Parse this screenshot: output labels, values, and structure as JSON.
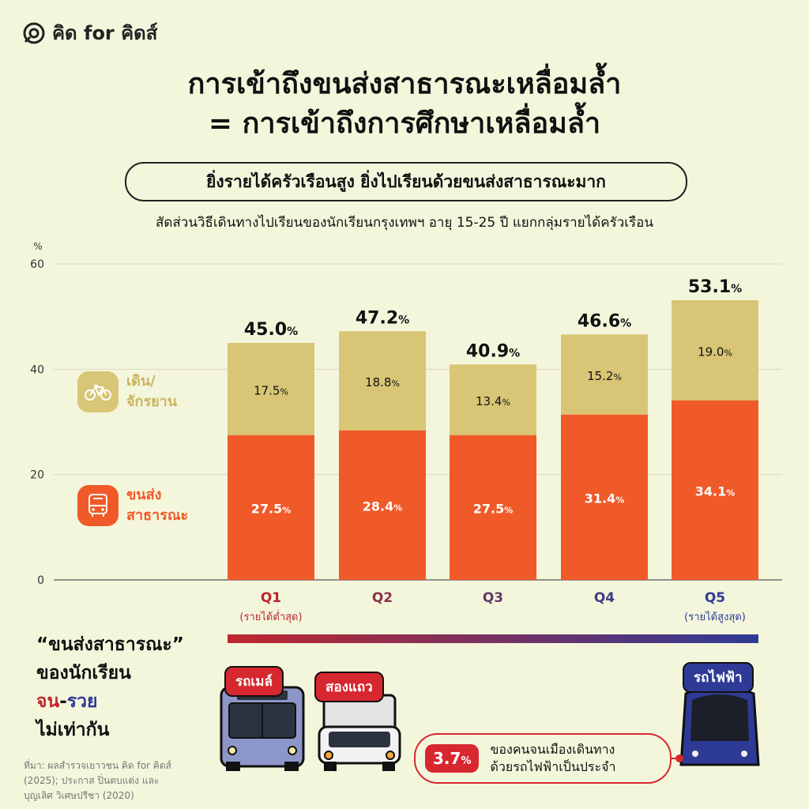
{
  "brand": {
    "logo_text": "คิด for คิดส์"
  },
  "title_lines": [
    "การเข้าถึงขนส่งสาธารณะเหลื่อมล้ำ",
    "= การเข้าถึงการศึกษาเหลื่อมล้ำ"
  ],
  "subtitle": "ยิ่งรายได้ครัวเรือนสูง ยิ่งไปเรียนด้วยขนส่งสาธารณะมาก",
  "caption": "สัดส่วนวิธีเดินทางไปเรียนของนักเรียนกรุงเทพฯ อายุ 15-25 ปี แยกกลุ่มรายได้ครัวเรือน",
  "colors": {
    "walk_bike": "#d8c575",
    "public_transport": "#f05a28",
    "q1": "#c0272d",
    "q5": "#2e3b96",
    "background": "#f4f6dc"
  },
  "legend": {
    "walk_bike": {
      "line1": "เดิน/",
      "line2": "จักรยาน",
      "icon": "bicycle-icon"
    },
    "public_transport": {
      "line1": "ขนส่ง",
      "line2": "สาธารณะ",
      "icon": "bus-icon"
    }
  },
  "chart_data": {
    "type": "bar",
    "stacked": true,
    "ylabel": "%",
    "ylim": [
      0,
      60
    ],
    "yticks": [
      0,
      20,
      40,
      60
    ],
    "grid": true,
    "categories": [
      "Q1",
      "Q2",
      "Q3",
      "Q4",
      "Q5"
    ],
    "category_notes": [
      "(รายได้ต่ำสุด)",
      "",
      "",
      "",
      "(รายได้สูงสุด)"
    ],
    "series": [
      {
        "name": "ขนส่งสาธารณะ",
        "values": [
          27.5,
          28.4,
          27.5,
          31.4,
          34.1
        ]
      },
      {
        "name": "เดิน/จักรยาน",
        "values": [
          17.5,
          18.8,
          13.4,
          15.2,
          19.0
        ]
      }
    ],
    "totals": [
      45.0,
      47.2,
      40.9,
      46.6,
      53.1
    ],
    "bottom_value_labels": [
      "27.5",
      "28.4",
      "27.5",
      "31.4",
      "34.1"
    ],
    "top_value_labels": [
      "17.5",
      "18.8",
      "13.4",
      "15.2",
      "19.0"
    ],
    "total_labels": [
      "45.0",
      "47.2",
      "40.9",
      "46.6",
      "53.1"
    ],
    "unit": "%"
  },
  "bottom": {
    "line1": "“ขนส่งสาธารณะ”",
    "line2": "ของนักเรียน",
    "poor": "จน",
    "dash": "-",
    "rich": "รวย",
    "line4": "ไม่เท่ากัน"
  },
  "vehicles": {
    "bus": "รถเมล์",
    "songthaew": "สองแถว",
    "skytrain": "รถไฟฟ้า"
  },
  "stat": {
    "value": "3.7",
    "unit": "%",
    "line1": "ของคนจนเมืองเดินทาง",
    "line2": "ด้วยรถไฟฟ้าเป็นประจำ"
  },
  "source_lines": [
    "ที่มา: ผลสำรวจเยาวชน คิด for คิดส์",
    "(2025); ประกาส ปิ่นตบแต่ง และ",
    "บุญเลิศ วิเศษปรีชา (2020)"
  ]
}
